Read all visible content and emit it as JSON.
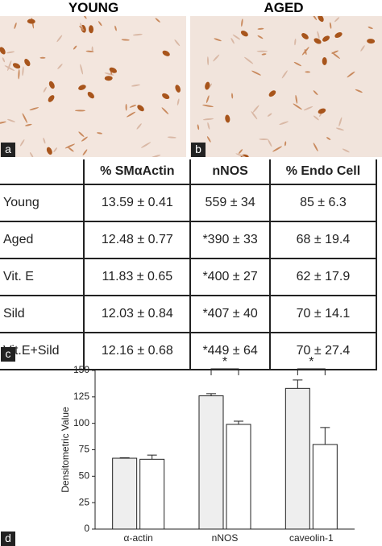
{
  "images": [
    {
      "title": "YOUNG",
      "label": "a"
    },
    {
      "title": "AGED",
      "label": "b"
    }
  ],
  "table": {
    "label": "c",
    "header": [
      "% SMαActin",
      "nNOS",
      "% Endo Cell"
    ],
    "rows": [
      [
        "Young",
        "13.59 ± 0.41",
        "559 ± 34",
        "85 ± 6.3"
      ],
      [
        "Aged",
        "12.48 ± 0.77",
        "*390 ± 33",
        "68 ± 19.4"
      ],
      [
        "Vit. E",
        "11.83 ± 0.65",
        "*400 ± 27",
        "62 ± 17.9"
      ],
      [
        "Sild",
        "12.03 ± 0.84",
        "*407 ± 40",
        "70 ± 14.1"
      ],
      [
        "Vit.E+Sild",
        "12.16 ± 0.68",
        "*449 ± 64",
        "70 ± 27.4"
      ]
    ]
  },
  "chart_data": {
    "type": "bar",
    "label": "d",
    "ylabel": "Densitometric Value",
    "categories": [
      "α-actin",
      "nNOS",
      "caveolin-1"
    ],
    "series": [
      {
        "color": "#eeeeee",
        "values": [
          67,
          126,
          133
        ],
        "errors": [
          0.5,
          2,
          8
        ]
      },
      {
        "color": "#ffffff",
        "values": [
          66,
          99,
          80
        ],
        "errors": [
          4,
          3,
          16
        ]
      }
    ],
    "ylim": [
      0,
      150
    ],
    "yticks": [
      0,
      25,
      50,
      75,
      100,
      125,
      150
    ],
    "annotations": [
      {
        "text": "*",
        "category": "nNOS"
      },
      {
        "text": "*",
        "category": "caveolin-1"
      }
    ]
  }
}
